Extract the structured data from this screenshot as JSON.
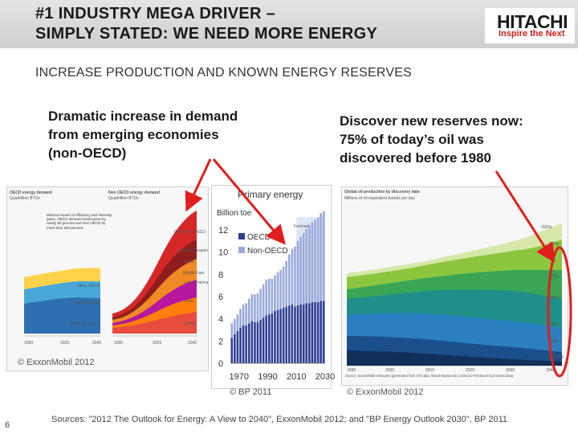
{
  "slide": {
    "title": "#1 INDUSTRY MEGA DRIVER –\nSIMPLY STATED: WE NEED MORE ENERGY",
    "subtitle": "INCREASE PRODUCTION AND KNOWN ENERGY RESERVES",
    "left_text": "Dramatic increase in demand\nfrom emerging economies\n(non-OECD)",
    "right_text": "Discover new reserves now:\n75% of today’s oil was\ndiscovered before 1980",
    "footer": "Sources: \"2012 The Outlook for Energy: A View to 2040\", ExxonMobil 2012; and \"BP Energy Outlook 2030\", BP 2011",
    "page_number": "6"
  },
  "logo": {
    "name": "HITACHI",
    "tagline": "Inspire the Next",
    "tagline_color": "#d21d1d"
  },
  "left_panel": {
    "left_title": "OECD energy demand",
    "left_unit": "Quadrillion BTUs",
    "right_title": "Non OECD energy demand",
    "right_unit": "Quadrillion BTUs",
    "note": "Without impact of efficiency and intensity gains, OECD demand would grow by nearly 80 percent and Non OECD by more than 250 percent.",
    "regions_oecd": [
      "Other OECD",
      "Europe OECD",
      "North America"
    ],
    "regions_nonoecd": [
      "Other Non OECD",
      "Russia/Caspian",
      "Africa",
      "Middle East",
      "Latin America",
      "India",
      "China"
    ],
    "years": [
      "1990",
      "2025",
      "2040"
    ],
    "credit": "© ExxonMobil 2012"
  },
  "middle_chart": {
    "chart_data": {
      "type": "bar",
      "title": "Primary energy",
      "ylabel": "Billion toe",
      "ylim": [
        0,
        12
      ],
      "yticks": [
        "12",
        "10",
        "8",
        "6",
        "4",
        "2",
        "0"
      ],
      "xticks": [
        "1970",
        "1990",
        "2010",
        "2030"
      ],
      "annotation": "Forecast",
      "categories": [
        "1965",
        "1967",
        "1969",
        "1971",
        "1973",
        "1975",
        "1977",
        "1979",
        "1981",
        "1983",
        "1985",
        "1987",
        "1989",
        "1991",
        "1993",
        "1995",
        "1997",
        "1999",
        "2001",
        "2003",
        "2005",
        "2007",
        "2009",
        "2011",
        "2013",
        "2015",
        "2017",
        "2019",
        "2021",
        "2023",
        "2025",
        "2027",
        "2029"
      ],
      "series": [
        {
          "name": "OECD",
          "color": "#2e3f93",
          "values": [
            2.3,
            2.6,
            2.9,
            3.2,
            3.4,
            3.4,
            3.6,
            3.8,
            3.7,
            3.7,
            3.9,
            4.1,
            4.3,
            4.4,
            4.5,
            4.7,
            4.8,
            4.9,
            5.0,
            5.1,
            5.2,
            5.3,
            5.1,
            5.2,
            5.3,
            5.3,
            5.4,
            5.4,
            5.5,
            5.5,
            5.5,
            5.6,
            5.6
          ]
        },
        {
          "name": "Non-OECD",
          "color": "#9aa9d9",
          "values": [
            1.3,
            1.4,
            1.5,
            1.7,
            1.9,
            2.0,
            2.2,
            2.4,
            2.5,
            2.6,
            2.8,
            3.0,
            3.2,
            3.2,
            3.1,
            3.2,
            3.4,
            3.5,
            3.7,
            4.1,
            4.6,
            5.0,
            5.4,
            5.8,
            6.1,
            6.4,
            6.7,
            7.0,
            7.2,
            7.4,
            7.6,
            7.9,
            8.1
          ]
        }
      ],
      "forecast_from": "2011"
    },
    "credit": "© BP 2011"
  },
  "right_panel": {
    "title": "Global oil production by discovery date",
    "unit": "Millions of oil-equivalent barrels per day",
    "decades": [
      "2020s",
      "2010s",
      "1970s",
      "1960s",
      "1950s",
      "1940s",
      "Pre-1940"
    ],
    "years": [
      "1990",
      "2000",
      "2010",
      "2020",
      "2030",
      "2040"
    ],
    "source": "Source: ExxonMobil estimates (generated from IHS data, Wood Mackenzie Limited & Petroleum Economist data)",
    "credit": "© ExxonMobil 2012"
  },
  "colors": {
    "arrow": "#e21d1d",
    "accent": "#d21d1d"
  }
}
